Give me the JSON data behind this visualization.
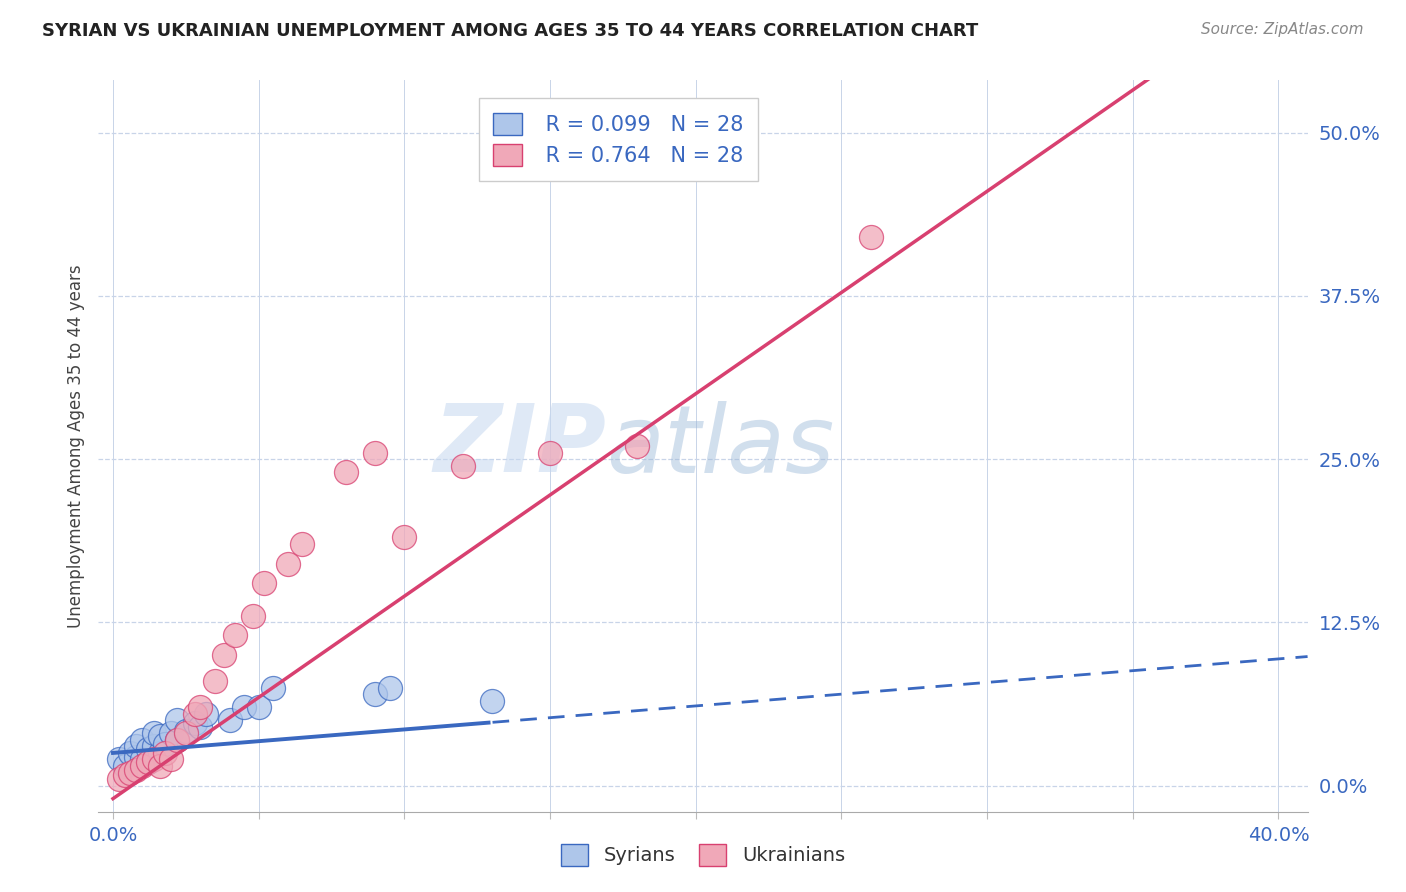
{
  "title": "SYRIAN VS UKRAINIAN UNEMPLOYMENT AMONG AGES 35 TO 44 YEARS CORRELATION CHART",
  "source": "Source: ZipAtlas.com",
  "ylabel": "Unemployment Among Ages 35 to 44 years",
  "xlabel": "",
  "xlim": [
    -0.005,
    0.41
  ],
  "ylim": [
    -0.02,
    0.54
  ],
  "yticks": [
    0.0,
    0.125,
    0.25,
    0.375,
    0.5
  ],
  "ytick_labels": [
    "0.0%",
    "12.5%",
    "25.0%",
    "37.5%",
    "50.0%"
  ],
  "xticks": [
    0.0,
    0.05,
    0.1,
    0.15,
    0.2,
    0.25,
    0.3,
    0.35,
    0.4
  ],
  "xtick_labels": [
    "0.0%",
    "",
    "",
    "",
    "",
    "",
    "",
    "",
    "40.0%"
  ],
  "syrian_R": 0.099,
  "syrian_N": 28,
  "ukrainian_R": 0.764,
  "ukrainian_N": 28,
  "syrian_color": "#aec6ea",
  "ukrainian_color": "#f0a8b8",
  "syrian_line_color": "#3a68c0",
  "ukrainian_line_color": "#d84070",
  "background_color": "#ffffff",
  "grid_color": "#c8d4e8",
  "watermark_zip": "ZIP",
  "watermark_atlas": "atlas",
  "syrians_x": [
    0.002,
    0.004,
    0.006,
    0.008,
    0.008,
    0.01,
    0.01,
    0.012,
    0.012,
    0.014,
    0.014,
    0.016,
    0.016,
    0.018,
    0.02,
    0.022,
    0.022,
    0.025,
    0.028,
    0.03,
    0.032,
    0.04,
    0.045,
    0.05,
    0.055,
    0.09,
    0.095,
    0.13
  ],
  "syrians_y": [
    0.02,
    0.015,
    0.025,
    0.022,
    0.03,
    0.02,
    0.035,
    0.018,
    0.028,
    0.03,
    0.04,
    0.025,
    0.038,
    0.032,
    0.04,
    0.035,
    0.05,
    0.042,
    0.048,
    0.045,
    0.055,
    0.05,
    0.06,
    0.06,
    0.075,
    0.07,
    0.075,
    0.065
  ],
  "ukrainians_x": [
    0.002,
    0.004,
    0.006,
    0.008,
    0.01,
    0.012,
    0.014,
    0.016,
    0.018,
    0.02,
    0.022,
    0.025,
    0.028,
    0.03,
    0.035,
    0.038,
    0.042,
    0.048,
    0.052,
    0.06,
    0.065,
    0.08,
    0.09,
    0.1,
    0.12,
    0.15,
    0.18,
    0.26
  ],
  "ukrainians_y": [
    0.005,
    0.008,
    0.01,
    0.012,
    0.015,
    0.018,
    0.02,
    0.015,
    0.025,
    0.02,
    0.035,
    0.04,
    0.055,
    0.06,
    0.08,
    0.1,
    0.115,
    0.13,
    0.155,
    0.17,
    0.185,
    0.24,
    0.255,
    0.19,
    0.245,
    0.255,
    0.26,
    0.42
  ],
  "ukrainian_line_slope": 1.55,
  "ukrainian_line_intercept": -0.01,
  "syrian_line_slope": 0.18,
  "syrian_line_intercept": 0.025
}
